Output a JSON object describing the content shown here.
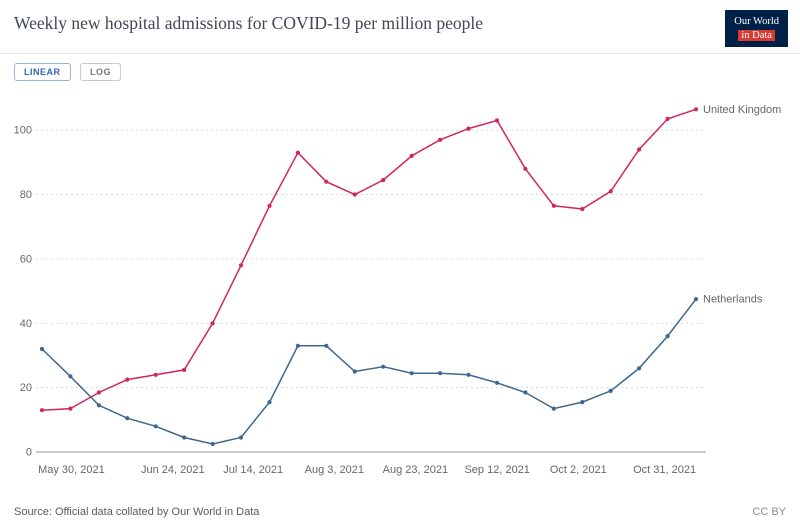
{
  "header": {
    "title": "Weekly new hospital admissions for COVID-19 per million people",
    "logo": {
      "line1": "Our World",
      "line2": "in Data"
    }
  },
  "controls": {
    "linear_label": "LINEAR",
    "log_label": "LOG"
  },
  "footer": {
    "source": "Source: Official data collated by Our World in Data",
    "license": "CC BY"
  },
  "chart_data": {
    "type": "line",
    "title": "Weekly new hospital admissions for COVID-19 per million people",
    "x_tick_labels": [
      "May 30, 2021",
      "Jun 24, 2021",
      "Jul 14, 2021",
      "Aug 3, 2021",
      "Aug 23, 2021",
      "Sep 12, 2021",
      "Oct 2, 2021",
      "Oct 31, 2021"
    ],
    "y_ticks": [
      0,
      20,
      40,
      60,
      80,
      100
    ],
    "ylim": [
      0,
      110
    ],
    "grid": "horizontal-dashed",
    "legend_position": "end-of-line",
    "x_unit": "weekly observations",
    "series": [
      {
        "name": "United Kingdom",
        "color": "#d0265c",
        "values": [
          13,
          13.5,
          18.5,
          22.5,
          24,
          25.5,
          40,
          58,
          76.5,
          93,
          84,
          80,
          84.5,
          92,
          97,
          100.5,
          103,
          88,
          76.5,
          75.5,
          81,
          94,
          103.5,
          106.5
        ]
      },
      {
        "name": "Netherlands",
        "color": "#3d678f",
        "values": [
          32,
          23.5,
          14.5,
          10.5,
          8,
          4.5,
          2.5,
          4.5,
          15.5,
          33,
          33,
          25,
          26.5,
          24.5,
          24.5,
          24,
          21.5,
          18.5,
          13.5,
          15.5,
          19,
          26,
          36,
          47.5
        ]
      }
    ]
  }
}
